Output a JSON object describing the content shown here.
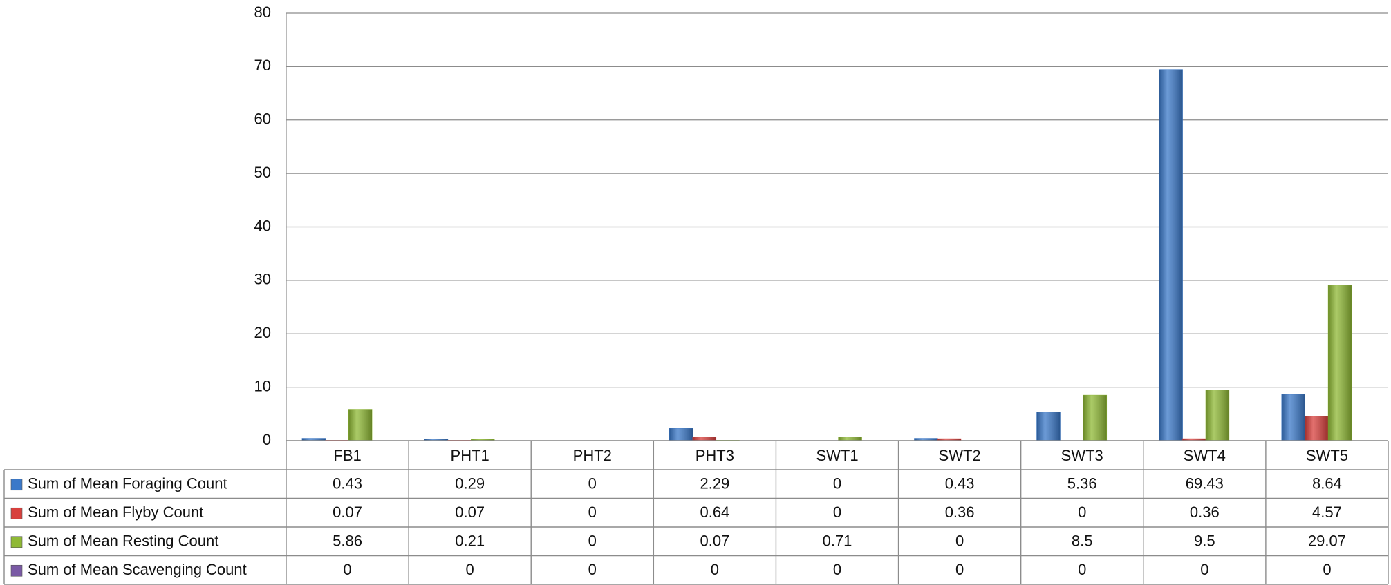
{
  "chart_data": {
    "type": "bar",
    "categories": [
      "FB1",
      "PHT1",
      "PHT2",
      "PHT3",
      "SWT1",
      "SWT2",
      "SWT3",
      "SWT4",
      "SWT5"
    ],
    "series": [
      {
        "name": "Sum of Mean Foraging Count",
        "color": "#3b79c9",
        "values": [
          0.43,
          0.29,
          0,
          2.29,
          0,
          0.43,
          5.36,
          69.43,
          8.64
        ]
      },
      {
        "name": "Sum of Mean Flyby Count",
        "color": "#d8403d",
        "values": [
          0.07,
          0.07,
          0,
          0.64,
          0,
          0.36,
          0,
          0.36,
          4.57
        ]
      },
      {
        "name": "Sum of Mean Resting Count",
        "color": "#8fb935",
        "values": [
          5.86,
          0.21,
          0,
          0.07,
          0.71,
          0,
          8.5,
          9.5,
          29.07
        ]
      },
      {
        "name": "Sum of Mean Scavenging Count",
        "color": "#7a5aa5",
        "values": [
          0,
          0,
          0,
          0,
          0,
          0,
          0,
          0,
          0
        ]
      }
    ],
    "ylim": [
      0,
      80
    ],
    "yticks": [
      0,
      10,
      20,
      30,
      40,
      50,
      60,
      70,
      80
    ],
    "grid": true
  }
}
